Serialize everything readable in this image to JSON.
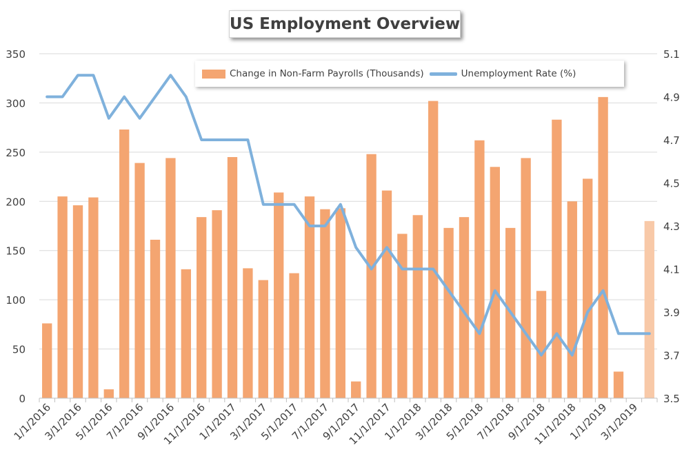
{
  "chart_data": {
    "type": "bar",
    "title": "US Employment Overview",
    "categories": [
      "1/1/2016",
      "2/1/2016",
      "3/1/2016",
      "4/1/2016",
      "5/1/2016",
      "6/1/2016",
      "7/1/2016",
      "8/1/2016",
      "9/1/2016",
      "10/1/2016",
      "11/1/2016",
      "12/1/2016",
      "1/1/2017",
      "2/1/2017",
      "3/1/2017",
      "4/1/2017",
      "5/1/2017",
      "6/1/2017",
      "7/1/2017",
      "8/1/2017",
      "9/1/2017",
      "10/1/2017",
      "11/1/2017",
      "12/1/2017",
      "1/1/2018",
      "2/1/2018",
      "3/1/2018",
      "4/1/2018",
      "5/1/2018",
      "6/1/2018",
      "7/1/2018",
      "8/1/2018",
      "9/1/2018",
      "10/1/2018",
      "11/1/2018",
      "12/1/2018",
      "1/1/2019",
      "2/1/2019",
      "3/1/2019",
      "4/1/2019"
    ],
    "x_tick_labels": [
      "1/1/2016",
      "3/1/2016",
      "5/1/2016",
      "7/1/2016",
      "9/1/2016",
      "11/1/2016",
      "1/1/2017",
      "3/1/2017",
      "5/1/2017",
      "7/1/2017",
      "9/1/2017",
      "11/1/2017",
      "1/1/2018",
      "3/1/2018",
      "5/1/2018",
      "7/1/2018",
      "9/1/2018",
      "11/1/2018",
      "1/1/2019",
      "3/1/2019"
    ],
    "series": [
      {
        "name": "Change in Non-Farm Payrolls (Thousands)",
        "type": "bar",
        "axis": "left",
        "color": "#f4a571",
        "highlight_last_color": "#f8c9a8",
        "values": [
          76,
          205,
          196,
          204,
          9,
          273,
          239,
          161,
          244,
          131,
          184,
          191,
          245,
          132,
          120,
          209,
          127,
          205,
          192,
          193,
          17,
          248,
          211,
          167,
          186,
          302,
          173,
          184,
          262,
          235,
          173,
          244,
          109,
          283,
          200,
          223,
          306,
          27,
          null,
          180
        ]
      },
      {
        "name": "Unemployment Rate (%)",
        "type": "line",
        "axis": "right",
        "color": "#7fb1dc",
        "values": [
          4.9,
          4.9,
          5.0,
          5.0,
          4.8,
          4.9,
          4.8,
          4.9,
          5.0,
          4.9,
          4.7,
          4.7,
          4.7,
          4.7,
          4.4,
          4.4,
          4.4,
          4.3,
          4.3,
          4.4,
          4.2,
          4.1,
          4.2,
          4.1,
          4.1,
          4.1,
          4.0,
          3.9,
          3.8,
          4.0,
          3.9,
          3.8,
          3.7,
          3.8,
          3.7,
          3.9,
          4.0,
          3.8,
          3.8,
          3.8
        ]
      }
    ],
    "y_left": {
      "min": 0,
      "max": 350,
      "ticks": [
        "0",
        "50",
        "100",
        "150",
        "200",
        "250",
        "300",
        "350"
      ]
    },
    "y_right": {
      "min": 3.5,
      "max": 5.1,
      "ticks": [
        "3.5",
        "3.7",
        "3.9",
        "4.1",
        "4.3",
        "4.5",
        "4.7",
        "4.9",
        "5.1"
      ]
    },
    "grid": true,
    "legend_position": "top"
  }
}
